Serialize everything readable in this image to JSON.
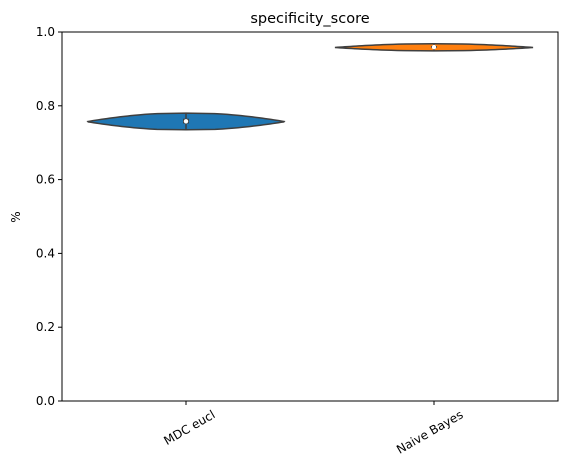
{
  "chart_data": {
    "type": "violin",
    "title": "specificity_score",
    "xlabel": "",
    "ylabel": "%",
    "ylim": [
      0.0,
      1.0
    ],
    "yticks": [
      "0.0",
      "0.2",
      "0.4",
      "0.6",
      "0.8",
      "1.0"
    ],
    "grid": false,
    "categories": [
      "MDC eucl",
      "Naive Bayes"
    ],
    "series": [
      {
        "category": "MDC eucl",
        "color": "#1f77b4",
        "min": 0.735,
        "q1": 0.752,
        "median": 0.758,
        "q3": 0.765,
        "max": 0.778,
        "kde_min": 0.735,
        "kde_max": 0.78,
        "mode": 0.757
      },
      {
        "category": "Naive Bayes",
        "color": "#ff7f0e",
        "min": 0.95,
        "q1": 0.957,
        "median": 0.959,
        "q3": 0.962,
        "max": 0.968,
        "kde_min": 0.949,
        "kde_max": 0.968,
        "mode": 0.958
      }
    ]
  }
}
